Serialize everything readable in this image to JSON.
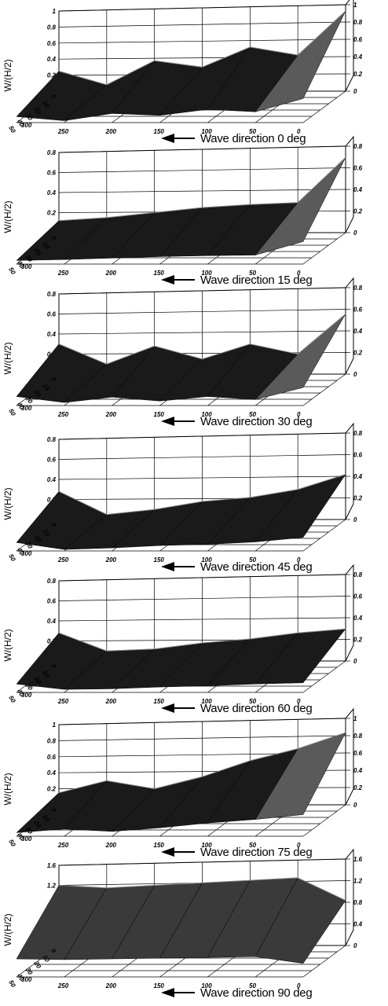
{
  "caption_prefix": "Wave direction",
  "caption_suffix": "deg",
  "charts": [
    {
      "type": "surface",
      "wave_direction": "0",
      "zlabel": "W/(H/2)",
      "zlim": [
        0,
        1
      ],
      "zticks": [
        "0",
        "0.2",
        "0.4",
        "0.6",
        "0.8",
        "1"
      ],
      "xticks": [
        "300",
        "250",
        "200",
        "150",
        "100",
        "50",
        "0"
      ],
      "yticks": [
        "0",
        "10",
        "20",
        "30",
        "40",
        "50"
      ],
      "x": [
        300,
        250,
        200,
        150,
        100,
        50,
        0
      ],
      "values": [
        0.25,
        0.08,
        0.38,
        0.3,
        0.55,
        0.45,
        1.0
      ]
    },
    {
      "type": "surface",
      "wave_direction": "15",
      "zlabel": "W/(H/2)",
      "zlim": [
        0,
        0.8
      ],
      "zticks": [
        "0",
        "0.2",
        "0.4",
        "0.6",
        "0.8"
      ],
      "xticks": [
        "300",
        "250",
        "200",
        "150",
        "100",
        "50",
        "0"
      ],
      "yticks": [
        "0",
        "10",
        "20",
        "30",
        "40",
        "50"
      ],
      "x": [
        300,
        250,
        200,
        150,
        100,
        50,
        0
      ],
      "values": [
        0.12,
        0.15,
        0.2,
        0.25,
        0.28,
        0.3,
        0.75
      ]
    },
    {
      "type": "surface",
      "wave_direction": "30",
      "zlabel": "W/(H/2)",
      "zlim": [
        0,
        0.8
      ],
      "zticks": [
        "0",
        "0.2",
        "0.4",
        "0.6",
        "0.8"
      ],
      "xticks": [
        "300",
        "250",
        "200",
        "150",
        "100",
        "50",
        "0"
      ],
      "yticks": [
        "0",
        "10",
        "20",
        "30",
        "40",
        "50"
      ],
      "x": [
        300,
        250,
        200,
        150,
        100,
        50,
        0
      ],
      "values": [
        0.3,
        0.1,
        0.28,
        0.15,
        0.3,
        0.2,
        0.6
      ]
    },
    {
      "type": "surface",
      "wave_direction": "45",
      "zlabel": "W/(H/2)",
      "zlim": [
        0,
        0.8
      ],
      "zticks": [
        "0",
        "0.2",
        "0.4",
        "0.6",
        "0.8"
      ],
      "xticks": [
        "300",
        "250",
        "200",
        "150",
        "100",
        "50",
        "0"
      ],
      "yticks": [
        "0",
        "10",
        "20",
        "30",
        "40",
        "50"
      ],
      "x": [
        300,
        250,
        200,
        150,
        100,
        50,
        0
      ],
      "values": [
        0.28,
        0.05,
        0.1,
        0.18,
        0.22,
        0.3,
        0.45
      ]
    },
    {
      "type": "surface",
      "wave_direction": "60",
      "zlabel": "W/(H/2)",
      "zlim": [
        0,
        0.8
      ],
      "zticks": [
        "0",
        "0.2",
        "0.4",
        "0.6",
        "0.8"
      ],
      "xticks": [
        "300",
        "250",
        "200",
        "150",
        "100",
        "50",
        "0"
      ],
      "yticks": [
        "0",
        "10",
        "20",
        "30",
        "40",
        "50"
      ],
      "x": [
        300,
        250,
        200,
        150,
        100,
        50,
        0
      ],
      "values": [
        0.28,
        0.1,
        0.12,
        0.18,
        0.22,
        0.28,
        0.32
      ]
    },
    {
      "type": "surface",
      "wave_direction": "75",
      "zlabel": "W/(H/2)",
      "zlim": [
        0,
        1
      ],
      "zticks": [
        "0",
        "0.2",
        "0.4",
        "0.6",
        "0.8",
        "1"
      ],
      "xticks": [
        "300",
        "250",
        "200",
        "150",
        "100",
        "50",
        "0"
      ],
      "yticks": [
        "0",
        "10",
        "20",
        "30",
        "40",
        "50"
      ],
      "x": [
        300,
        250,
        200,
        150,
        100,
        50,
        0
      ],
      "values": [
        0.15,
        0.3,
        0.2,
        0.35,
        0.55,
        0.7,
        0.9
      ]
    },
    {
      "type": "surface",
      "wave_direction": "90",
      "zlabel": "W/(H/2)",
      "zlim": [
        0,
        1.6
      ],
      "zticks": [
        "0",
        "0.4",
        "0.8",
        "1.2",
        "1.6"
      ],
      "xticks": [
        "300",
        "250",
        "200",
        "150",
        "100",
        "50",
        "0"
      ],
      "yticks": [
        "0",
        "10",
        "20",
        "30",
        "40",
        "50"
      ],
      "x": [
        300,
        250,
        200,
        150,
        100,
        50,
        0
      ],
      "values": [
        1.2,
        1.15,
        1.2,
        1.25,
        1.3,
        1.35,
        0.9
      ]
    }
  ]
}
